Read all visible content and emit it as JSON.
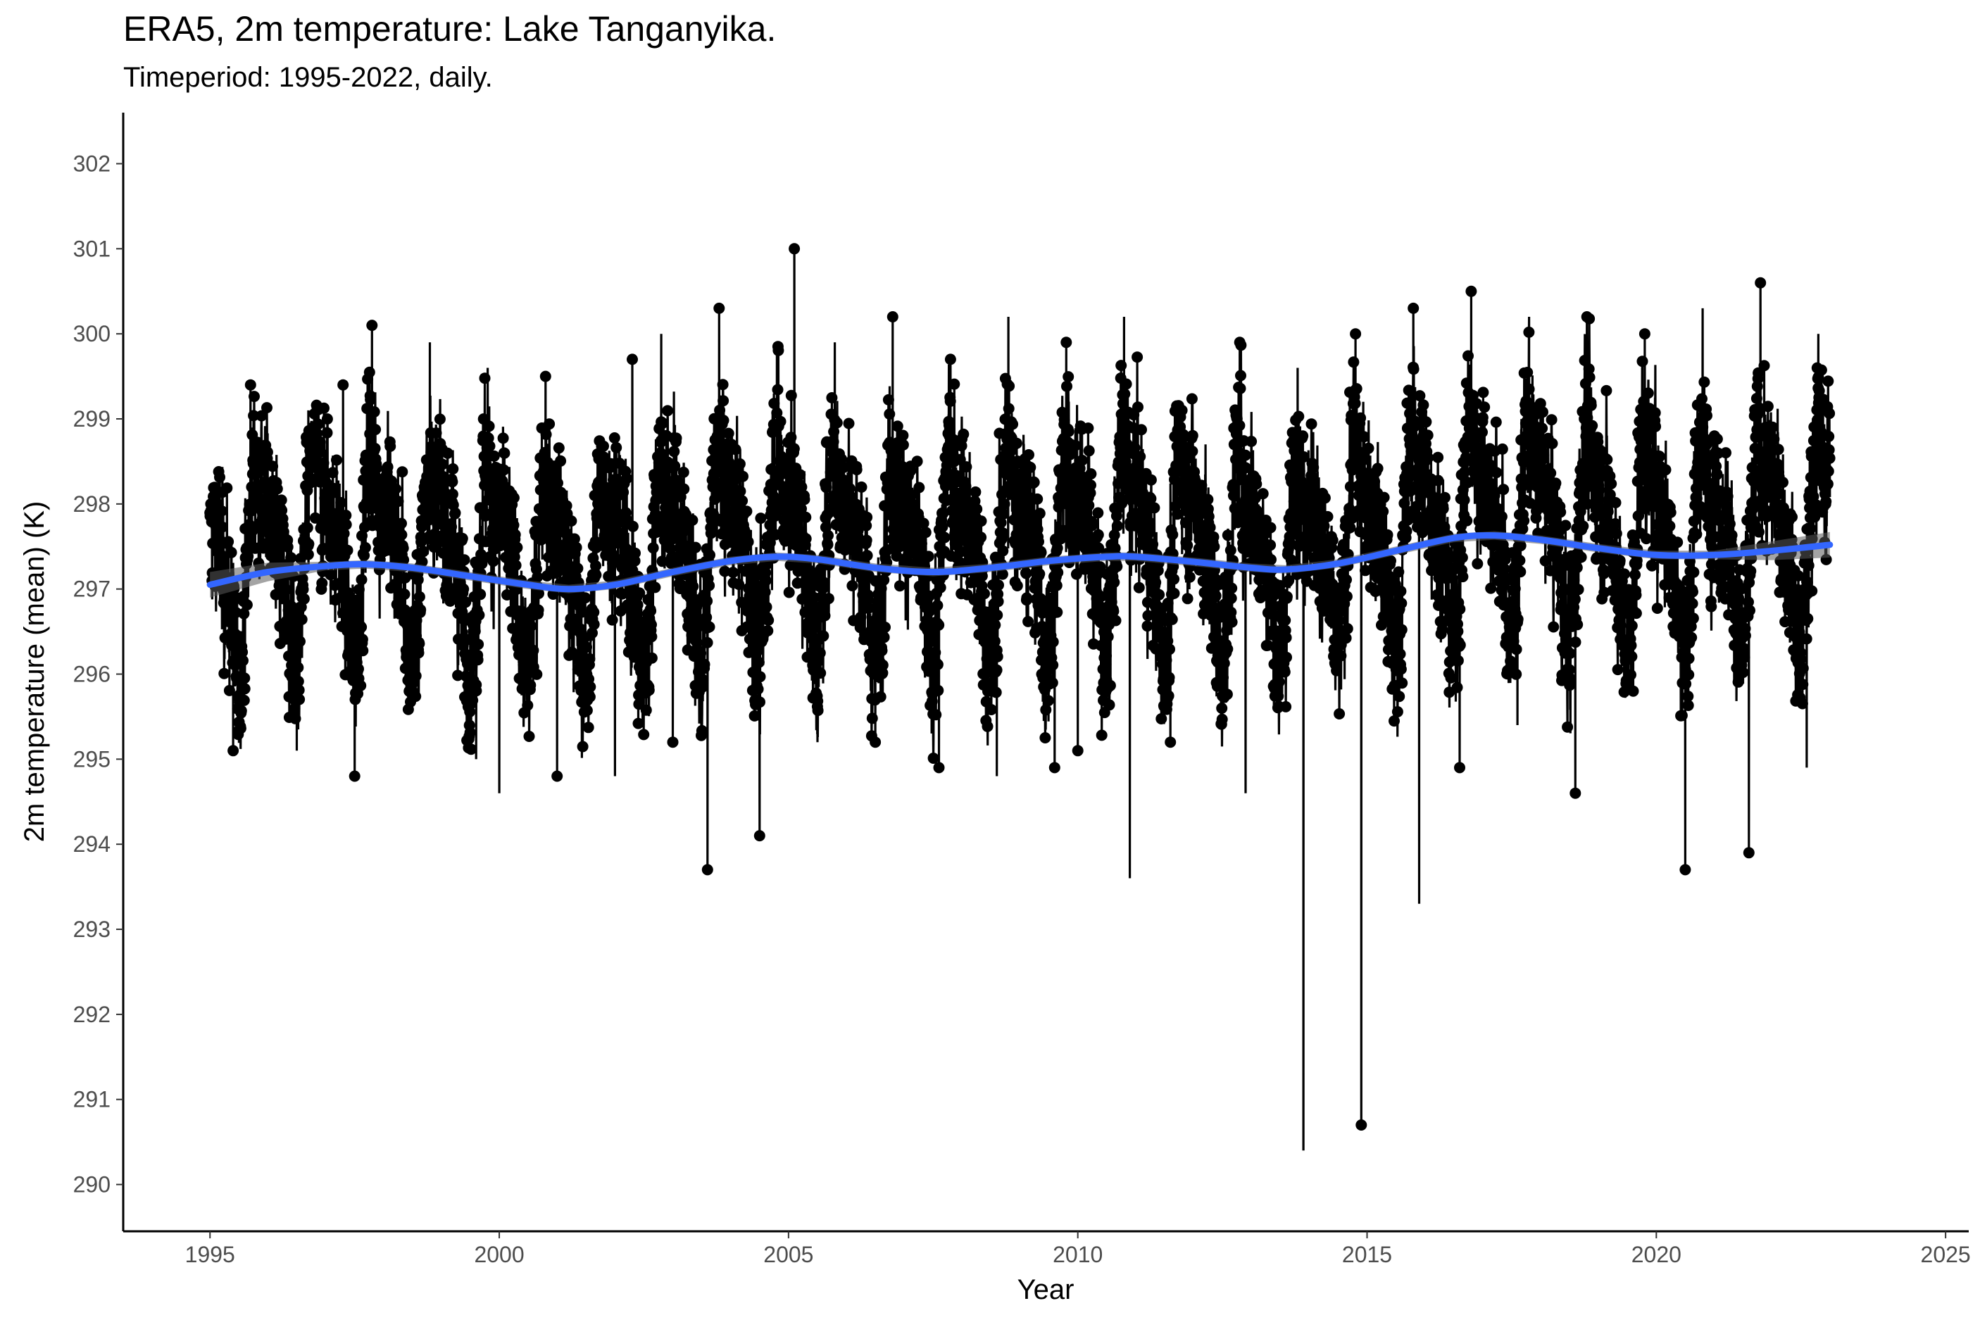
{
  "chart_data": {
    "type": "line",
    "title": "ERA5, 2m temperature: Lake Tanganyika.",
    "subtitle": "Timeperiod: 1995-2022, daily.",
    "xlabel": "Year",
    "ylabel": "2m temperature (mean) (K)",
    "xlim": [
      1993.5,
      2025.4
    ],
    "ylim": [
      289.45,
      302.6
    ],
    "x_ticks": [
      "1995",
      "2000",
      "2005",
      "2010",
      "2015",
      "2020",
      "2025"
    ],
    "y_ticks": [
      "290",
      "291",
      "292",
      "293",
      "294",
      "295",
      "296",
      "297",
      "298",
      "299",
      "300",
      "301",
      "302"
    ],
    "grid": false,
    "legend": "none",
    "colors": {
      "points": "#000000",
      "smooth": "#3366FF",
      "band": "#5a5a5a"
    },
    "series": [
      {
        "role": "daily observations (points joined by line)",
        "mean_annual_cycle": [
          298.1,
          297.8,
          297.6,
          297.3,
          297.0,
          296.3,
          296.0,
          296.6,
          297.6,
          298.6,
          298.4,
          297.9
        ],
        "upper_envelope": [
          [
            1995.0,
            298.1
          ],
          [
            1995.7,
            299.4
          ],
          [
            1996.7,
            299.1
          ],
          [
            1997.3,
            299.4
          ],
          [
            1997.8,
            300.1
          ],
          [
            1998.8,
            299.9
          ],
          [
            1999.8,
            299.6
          ],
          [
            2000.8,
            299.5
          ],
          [
            2001.8,
            298.7
          ],
          [
            2002.3,
            299.7
          ],
          [
            2002.8,
            300.0
          ],
          [
            2003.8,
            300.3
          ],
          [
            2004.8,
            299.9
          ],
          [
            2005.1,
            301.0
          ],
          [
            2005.8,
            299.9
          ],
          [
            2006.8,
            300.2
          ],
          [
            2007.8,
            299.7
          ],
          [
            2008.8,
            300.2
          ],
          [
            2009.8,
            299.9
          ],
          [
            2010.8,
            300.2
          ],
          [
            2011.8,
            299.1
          ],
          [
            2012.8,
            299.9
          ],
          [
            2013.8,
            299.6
          ],
          [
            2014.8,
            300.0
          ],
          [
            2015.8,
            300.3
          ],
          [
            2016.8,
            300.5
          ],
          [
            2017.8,
            300.2
          ],
          [
            2018.8,
            300.2
          ],
          [
            2019.8,
            300.0
          ],
          [
            2020.8,
            300.3
          ],
          [
            2021.8,
            300.6
          ],
          [
            2022.8,
            300.0
          ]
        ],
        "lower_envelope": [
          [
            1995.4,
            295.1
          ],
          [
            1996.5,
            295.1
          ],
          [
            1997.5,
            294.8
          ],
          [
            1998.6,
            295.7
          ],
          [
            1999.6,
            295.0
          ],
          [
            2000.0,
            294.6
          ],
          [
            2001.0,
            294.8
          ],
          [
            2002.0,
            294.8
          ],
          [
            2003.0,
            295.2
          ],
          [
            2003.6,
            293.7
          ],
          [
            2004.5,
            294.1
          ],
          [
            2005.5,
            295.2
          ],
          [
            2006.5,
            295.2
          ],
          [
            2007.6,
            294.9
          ],
          [
            2008.6,
            294.8
          ],
          [
            2009.6,
            294.9
          ],
          [
            2010.0,
            295.1
          ],
          [
            2010.9,
            293.6
          ],
          [
            2011.6,
            295.2
          ],
          [
            2012.9,
            294.6
          ],
          [
            2013.9,
            290.4
          ],
          [
            2014.9,
            290.7
          ],
          [
            2015.9,
            293.3
          ],
          [
            2016.6,
            294.9
          ],
          [
            2017.6,
            295.4
          ],
          [
            2018.6,
            294.6
          ],
          [
            2019.6,
            295.8
          ],
          [
            2020.5,
            293.7
          ],
          [
            2021.6,
            293.9
          ],
          [
            2022.6,
            294.9
          ]
        ]
      },
      {
        "role": "smoothed trend (loess) with confidence band",
        "x": [
          1995.0,
          1996.0,
          1997.0,
          1997.7,
          1998.5,
          1999.5,
          2000.5,
          2001.2,
          2002.0,
          2003.0,
          2004.0,
          2004.8,
          2005.5,
          2006.5,
          2007.5,
          2008.5,
          2009.5,
          2010.5,
          2011.0,
          2012.0,
          2013.0,
          2013.6,
          2014.5,
          2015.5,
          2016.5,
          2017.2,
          2018.0,
          2019.0,
          2020.0,
          2021.0,
          2022.0,
          2023.0
        ],
        "values": [
          297.05,
          297.2,
          297.27,
          297.29,
          297.25,
          297.15,
          297.05,
          297.0,
          297.05,
          297.2,
          297.33,
          297.38,
          297.35,
          297.25,
          297.2,
          297.25,
          297.33,
          297.38,
          297.38,
          297.32,
          297.25,
          297.23,
          297.3,
          297.45,
          297.6,
          297.63,
          297.58,
          297.48,
          297.4,
          297.4,
          297.45,
          297.52
        ],
        "band_halfwidth_edge": 0.15,
        "band_halfwidth_mid": 0.05
      }
    ]
  }
}
